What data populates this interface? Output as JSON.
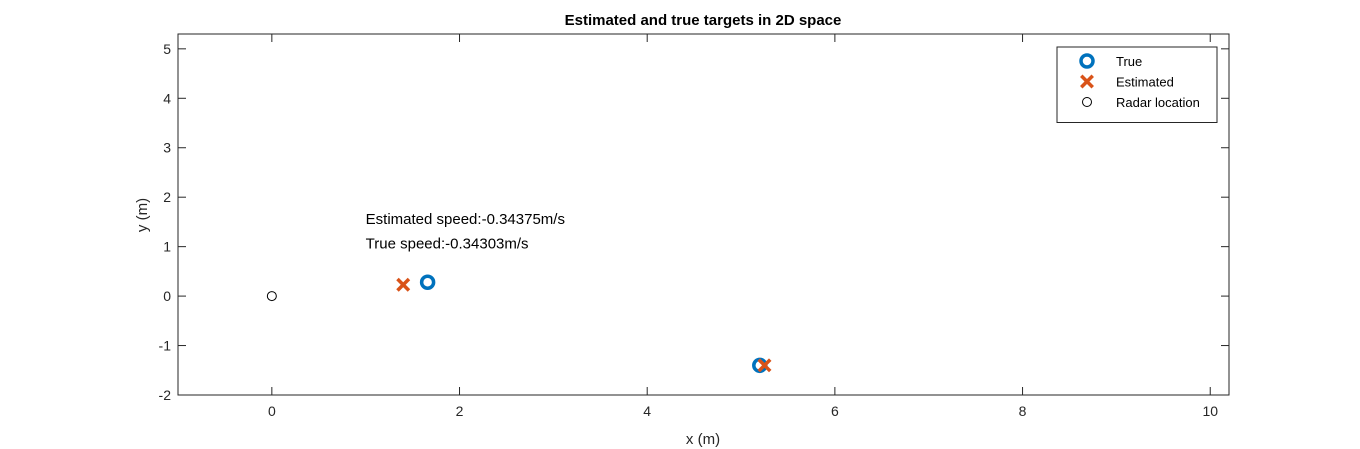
{
  "chart_data": {
    "type": "scatter",
    "title": "Estimated and true targets in 2D space",
    "xlabel": "x (m)",
    "ylabel": "y (m)",
    "xlim": [
      -1,
      10.2
    ],
    "ylim": [
      -2,
      5.3
    ],
    "xticks": [
      0,
      2,
      4,
      6,
      8,
      10
    ],
    "yticks": [
      -2,
      -1,
      0,
      1,
      2,
      3,
      4,
      5
    ],
    "grid": false,
    "legend_location": "top-right",
    "series": [
      {
        "name": "True",
        "marker": "circle-thick",
        "color": "#0072BD",
        "points": [
          {
            "x": 1.66,
            "y": 0.28
          },
          {
            "x": 5.2,
            "y": -1.4
          }
        ]
      },
      {
        "name": "Estimated",
        "marker": "x",
        "color": "#D95319",
        "points": [
          {
            "x": 1.4,
            "y": 0.23
          },
          {
            "x": 5.25,
            "y": -1.4
          }
        ]
      },
      {
        "name": "Radar location",
        "marker": "circle-open",
        "color": "#000000",
        "points": [
          {
            "x": 0,
            "y": 0
          }
        ]
      }
    ],
    "annotations": [
      {
        "text": "Estimated speed:-0.34375m/s",
        "x": 1.0,
        "y": 1.46
      },
      {
        "text": "True speed:-0.34303m/s",
        "x": 1.0,
        "y": 0.96
      }
    ]
  }
}
